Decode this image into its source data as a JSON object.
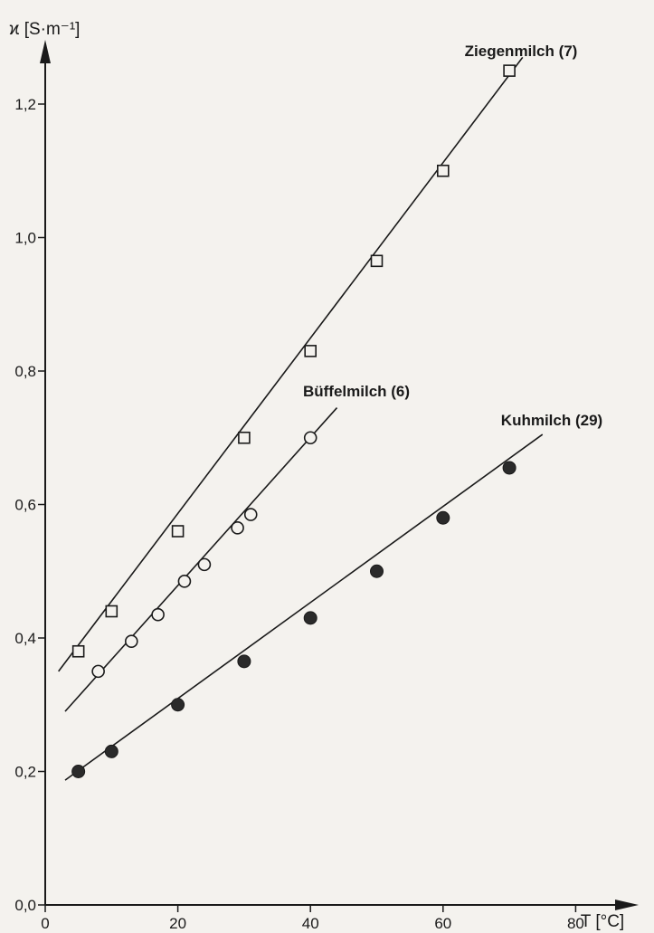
{
  "chart_data": {
    "type": "scatter",
    "ylabel": "ϰ [S·m⁻¹]",
    "xlabel": "T [°C]",
    "xlim": [
      0,
      86
    ],
    "ylim": [
      0,
      1.3
    ],
    "x_ticks": [
      0,
      20,
      40,
      60,
      80
    ],
    "x_tick_labels": [
      "0",
      "20",
      "40",
      "60",
      "80"
    ],
    "y_ticks": [
      0,
      0.2,
      0.4,
      0.6,
      0.8,
      1.0,
      1.2
    ],
    "y_tick_labels": [
      "0,0",
      "0,2",
      "0,4",
      "0,6",
      "0,8",
      "1,0",
      "1,2"
    ],
    "grid": false,
    "series": [
      {
        "name": "Ziegenmilch (7)",
        "marker": "square-open",
        "x": [
          5,
          10,
          20,
          30,
          40,
          50,
          60,
          70
        ],
        "y": [
          0.38,
          0.44,
          0.56,
          0.7,
          0.83,
          0.965,
          1.1,
          1.25
        ],
        "fit": [
          [
            2,
            0.35
          ],
          [
            72,
            1.27
          ]
        ]
      },
      {
        "name": "Büffelmilch (6)",
        "marker": "circle-open",
        "x": [
          8,
          13,
          17,
          21,
          24,
          29,
          31,
          40
        ],
        "y": [
          0.35,
          0.395,
          0.435,
          0.485,
          0.51,
          0.565,
          0.585,
          0.7
        ],
        "fit": [
          [
            3,
            0.29
          ],
          [
            44,
            0.745
          ]
        ]
      },
      {
        "name": "Kuhmilch (29)",
        "marker": "circle-filled",
        "x": [
          5,
          10,
          20,
          30,
          40,
          50,
          60,
          70
        ],
        "y": [
          0.2,
          0.23,
          0.3,
          0.365,
          0.43,
          0.5,
          0.58,
          0.655
        ],
        "fit": [
          [
            3,
            0.187
          ],
          [
            75,
            0.705
          ]
        ]
      }
    ]
  }
}
